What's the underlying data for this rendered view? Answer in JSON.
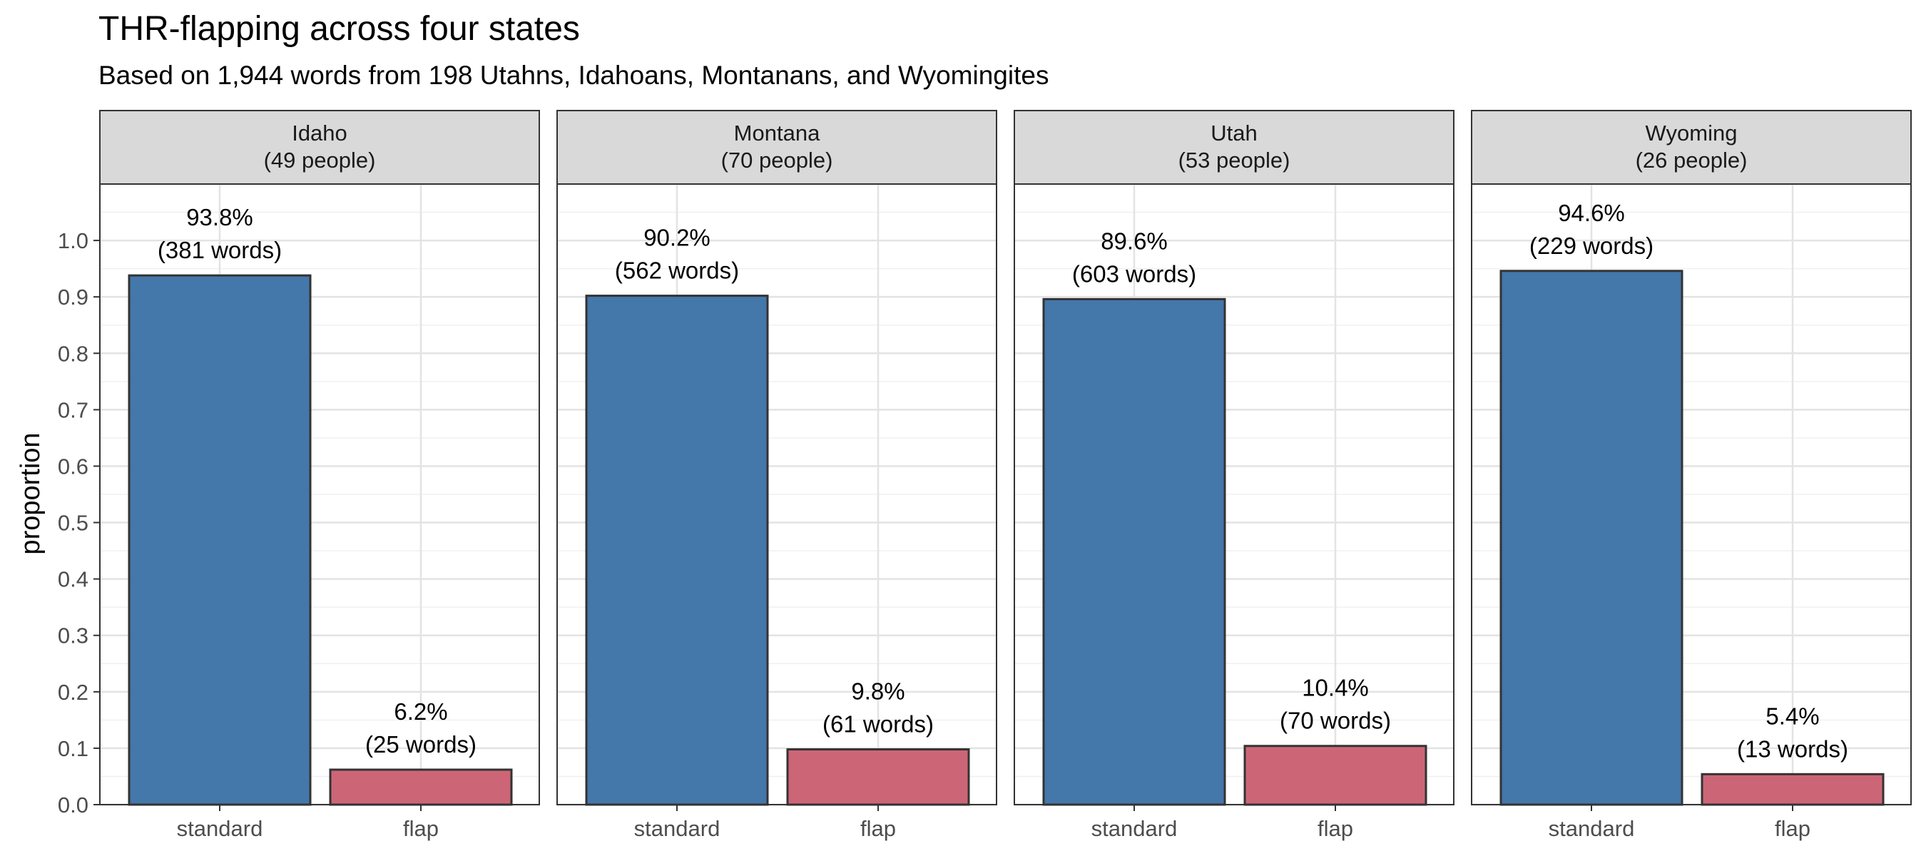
{
  "chart_data": {
    "type": "bar",
    "title": "THR-flapping across four states",
    "subtitle": "Based on 1,944 words from 198 Utahns, Idahoans, Montanans, and Wyomingites",
    "ylabel": "proportion",
    "xlabel": "",
    "ylim": [
      0,
      1.1
    ],
    "yticks": [
      0.0,
      0.1,
      0.2,
      0.3,
      0.4,
      0.5,
      0.6,
      0.7,
      0.8,
      0.9,
      1.0
    ],
    "ytick_labels": [
      "0.0",
      "0.1",
      "0.2",
      "0.3",
      "0.4",
      "0.5",
      "0.6",
      "0.7",
      "0.8",
      "0.9",
      "1.0"
    ],
    "categories": [
      "standard",
      "flap"
    ],
    "grid": true,
    "colors": {
      "standard": "#4477AA",
      "flap": "#CC6677"
    },
    "facets": [
      {
        "name": "Idaho",
        "people": "(49 people)",
        "values": [
          0.938,
          0.062
        ],
        "labels": [
          [
            "93.8%",
            "(381 words)"
          ],
          [
            "6.2%",
            "(25 words)"
          ]
        ]
      },
      {
        "name": "Montana",
        "people": "(70 people)",
        "values": [
          0.902,
          0.098
        ],
        "labels": [
          [
            "90.2%",
            "(562 words)"
          ],
          [
            "9.8%",
            "(61 words)"
          ]
        ]
      },
      {
        "name": "Utah",
        "people": "(53 people)",
        "values": [
          0.896,
          0.104
        ],
        "labels": [
          [
            "89.6%",
            "(603 words)"
          ],
          [
            "10.4%",
            "(70 words)"
          ]
        ]
      },
      {
        "name": "Wyoming",
        "people": "(26 people)",
        "values": [
          0.946,
          0.054
        ],
        "labels": [
          [
            "94.6%",
            "(229 words)"
          ],
          [
            "5.4%",
            "(13 words)"
          ]
        ]
      }
    ]
  }
}
